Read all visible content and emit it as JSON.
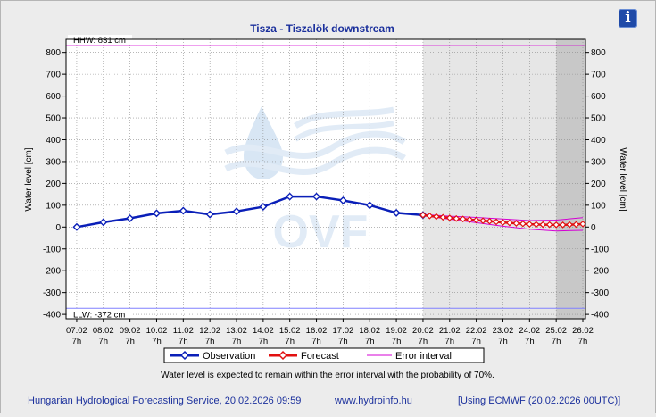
{
  "info_icon_glyph": "i",
  "watermark": "OVF",
  "note": "Water level is expected to remain within the error interval with the probability of 70%.",
  "footer": {
    "service": "Hungarian Hydrological Forecasting Service, 20.02.2026 09:59",
    "url": "www.hydroinfo.hu",
    "model": "[Using ECMWF (20.02.2026  00UTC)]"
  },
  "colors": {
    "observation": "#0a1fb8",
    "forecast": "#e21010",
    "error_interval": "#d400d4",
    "llw": "#8080ff",
    "title": "#1a2f9c"
  },
  "chart_data": {
    "type": "line",
    "title": "Tisza - Tiszalök downstream",
    "ylabel": "Water level [cm]",
    "ylim": [
      -420,
      860
    ],
    "yticks": [
      -400,
      -300,
      -200,
      -100,
      0,
      100,
      200,
      300,
      400,
      500,
      600,
      700,
      800
    ],
    "xlim": [
      -0.4,
      19.1
    ],
    "x_categories": [
      "07.02",
      "08.02",
      "09.02",
      "10.02",
      "11.02",
      "12.02",
      "13.02",
      "14.02",
      "15.02",
      "16.02",
      "17.02",
      "18.02",
      "19.02",
      "20.02",
      "21.02",
      "22.02",
      "23.02",
      "24.02",
      "25.02",
      "26.02"
    ],
    "x_hour_label": "7h",
    "grid": true,
    "legend": [
      "Observation",
      "Forecast",
      "Error interval"
    ],
    "legend_position": "bottom",
    "forecast_start": 13,
    "late_forecast_start": 18,
    "thresholds": [
      {
        "name": "HHW",
        "label": "HHW: 831 cm",
        "value": 831
      },
      {
        "name": "LLW",
        "label": "LLW: -372 cm",
        "value": -372
      }
    ],
    "series": [
      {
        "name": "Observation",
        "x": [
          0,
          1,
          2,
          3,
          4,
          5,
          6,
          7,
          8,
          9,
          10,
          11,
          12,
          13
        ],
        "y": [
          0,
          22,
          40,
          63,
          75,
          58,
          72,
          93,
          140,
          140,
          122,
          100,
          65,
          55
        ]
      },
      {
        "name": "Forecast",
        "x": [
          13,
          13.25,
          13.5,
          13.75,
          14,
          14.25,
          14.5,
          14.75,
          15,
          15.25,
          15.5,
          15.75,
          16,
          16.25,
          16.5,
          16.75,
          17,
          17.25,
          17.5,
          17.75,
          18,
          18.25,
          18.5,
          18.75,
          19
        ],
        "y": [
          55,
          51,
          48,
          45,
          42,
          39,
          37,
          34,
          32,
          29,
          27,
          24,
          21,
          19,
          17,
          15,
          13,
          12,
          11,
          11,
          10,
          10,
          11,
          12,
          14
        ]
      },
      {
        "name": "Error interval upper",
        "x": [
          13,
          14,
          15,
          16,
          17,
          18,
          19
        ],
        "y": [
          58,
          50,
          44,
          37,
          30,
          32,
          43
        ]
      },
      {
        "name": "Error interval lower",
        "x": [
          13,
          14,
          15,
          16,
          17,
          18,
          19
        ],
        "y": [
          52,
          36,
          20,
          4,
          -10,
          -18,
          -15
        ]
      }
    ]
  }
}
